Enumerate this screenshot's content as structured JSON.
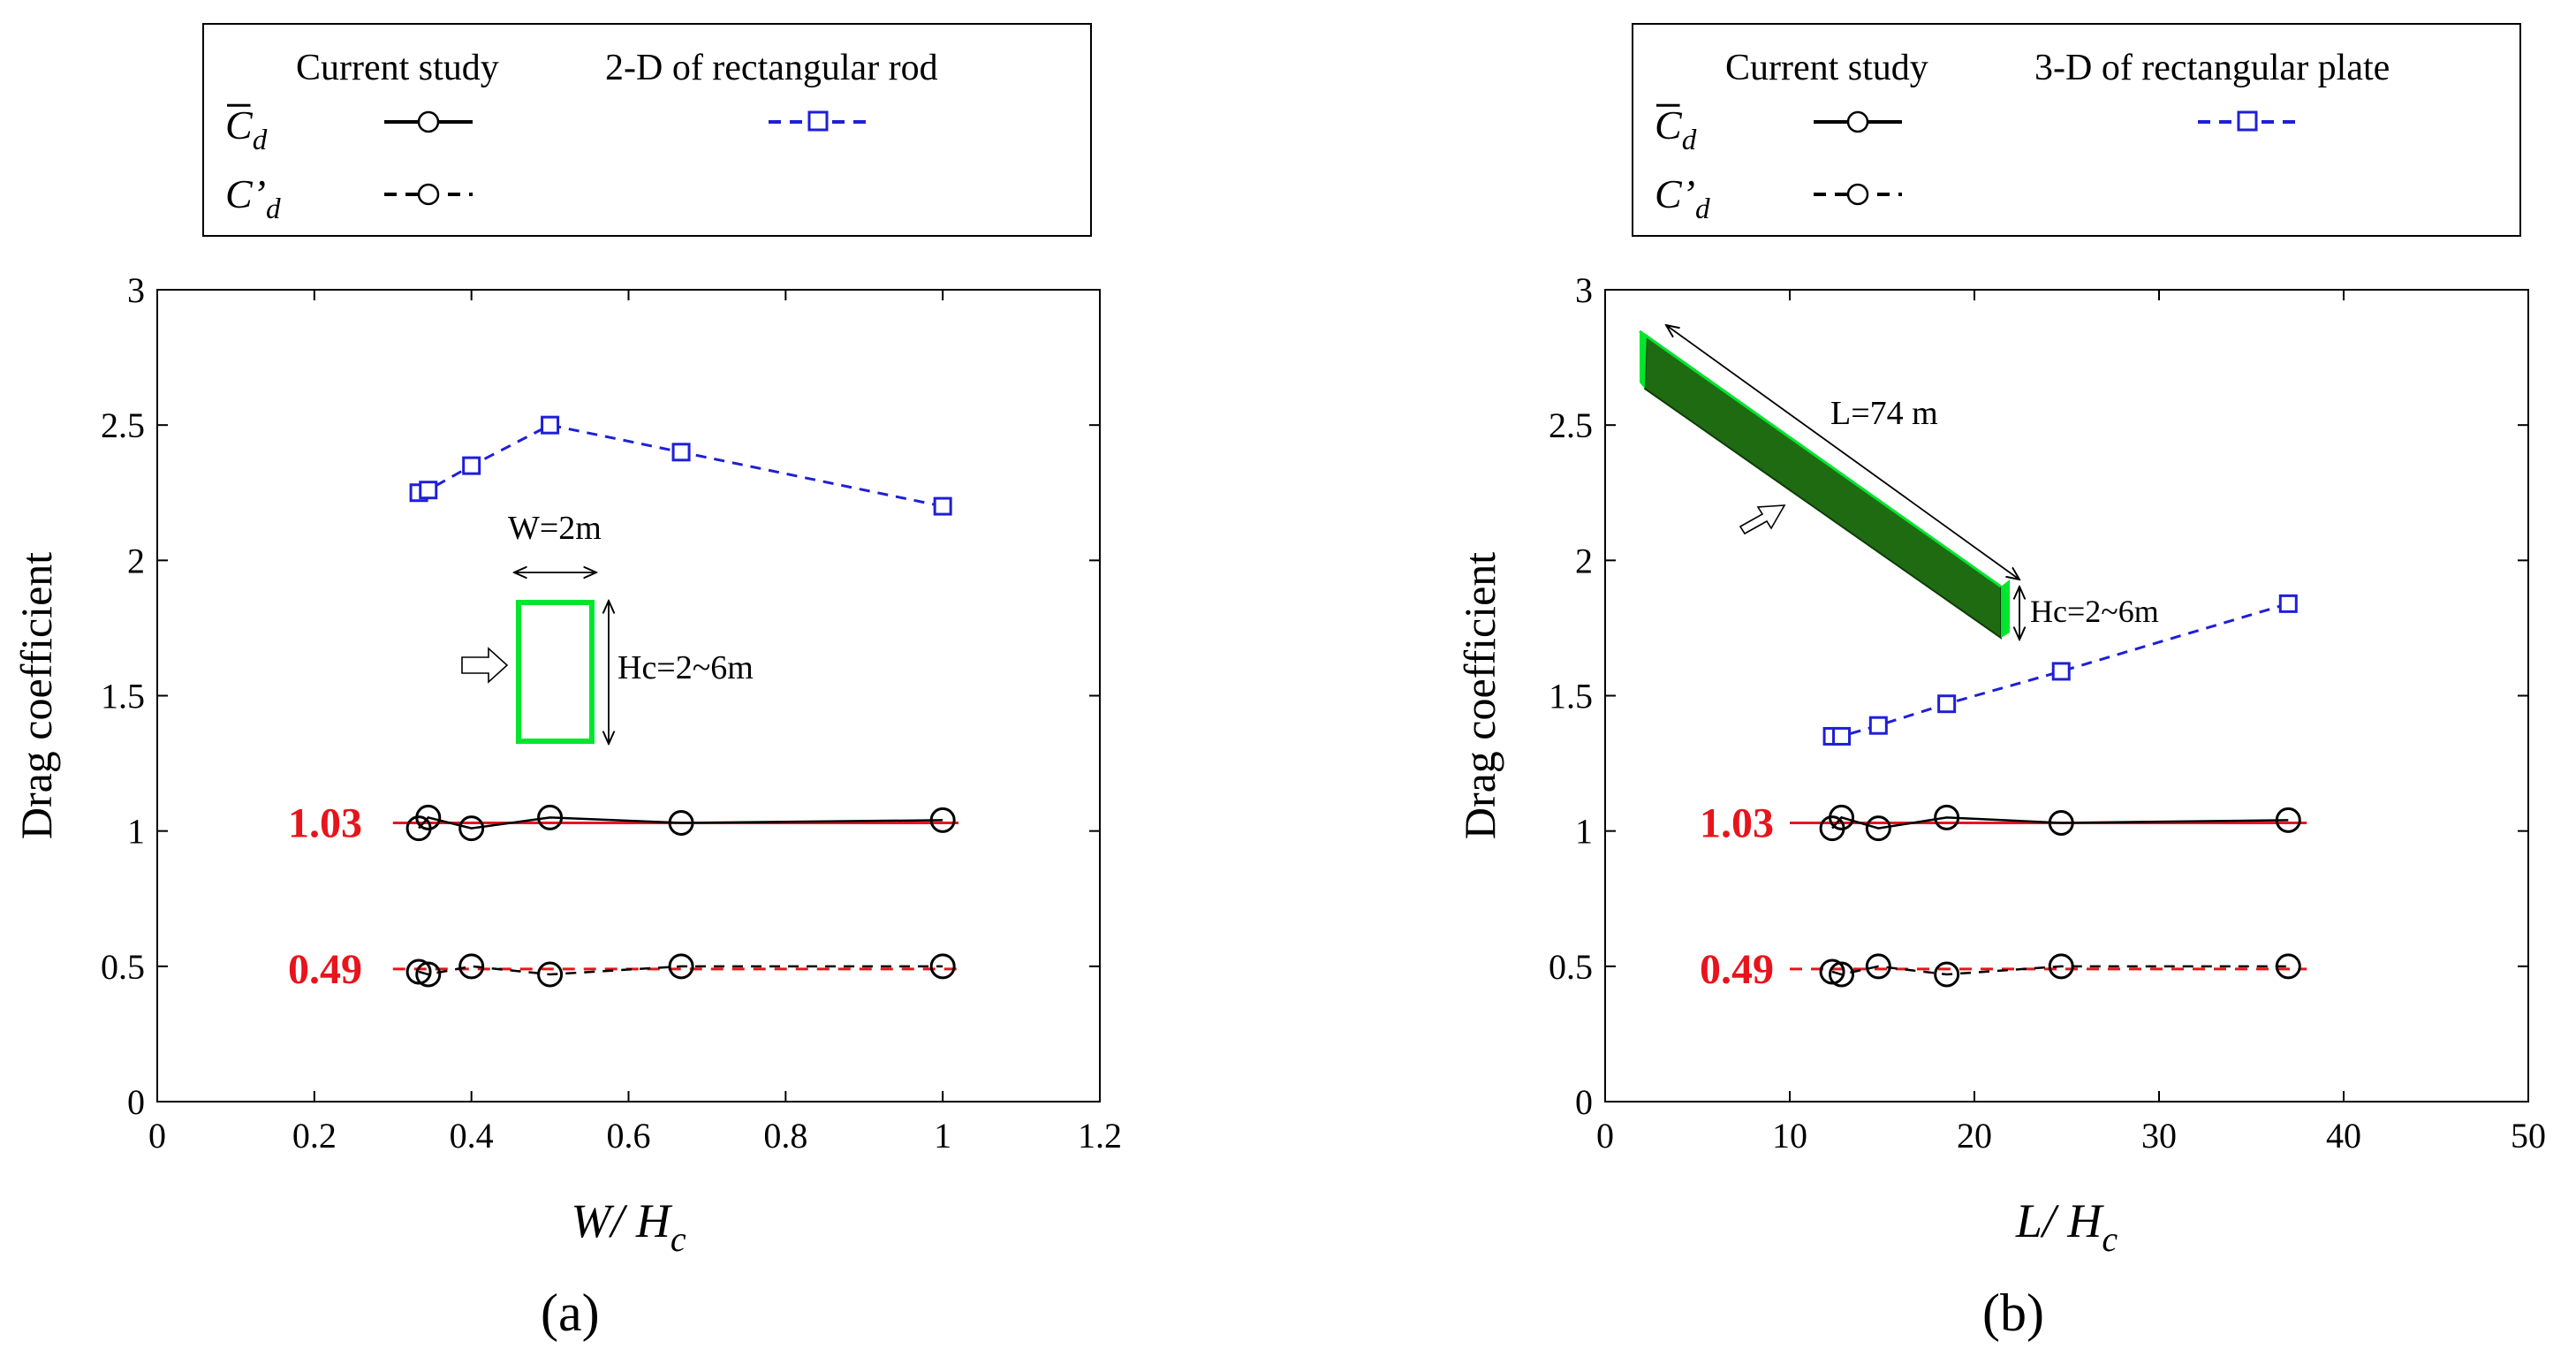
{
  "colors": {
    "current": "#000000",
    "reference": "#1f1fd6",
    "mean_line": "#e8141c",
    "highlight": "#00e62e",
    "plate": "#1f6b12"
  },
  "chart_data": [
    {
      "type": "line",
      "panel_label": "(a)",
      "xlabel": "W/ Hc",
      "ylabel": "Drag coefficient",
      "xlim": [
        0,
        1.2
      ],
      "ylim": [
        0,
        3
      ],
      "xticks": [
        "0",
        "0.2",
        "0.4",
        "0.6",
        "0.8",
        "1",
        "1.2"
      ],
      "yticks": [
        "0",
        "0.5",
        "1",
        "1.5",
        "2",
        "2.5",
        "3"
      ],
      "grid": false,
      "legend": {
        "position": "top",
        "col1_header": "Current study",
        "col2_header": "2-D of rectangular rod",
        "row1_symbol": "C̄d",
        "row2_symbol": "C'd"
      },
      "series": [
        {
          "name": "Current study C̄d",
          "style": "solid",
          "marker": "circle",
          "x": [
            0.333,
            0.345,
            0.4,
            0.5,
            0.667,
            1.0
          ],
          "y": [
            1.01,
            1.05,
            1.01,
            1.05,
            1.03,
            1.04
          ]
        },
        {
          "name": "Current study C'd",
          "style": "dashed",
          "marker": "circle",
          "x": [
            0.333,
            0.345,
            0.4,
            0.5,
            0.667,
            1.0
          ],
          "y": [
            0.48,
            0.47,
            0.5,
            0.47,
            0.5,
            0.5
          ]
        },
        {
          "name": "2-D of rectangular rod",
          "style": "dashed",
          "marker": "square",
          "x": [
            0.333,
            0.345,
            0.4,
            0.5,
            0.667,
            1.0
          ],
          "y": [
            2.25,
            2.26,
            2.35,
            2.5,
            2.4,
            2.2
          ]
        }
      ],
      "mean_lines": [
        {
          "label": "1.03",
          "y": 1.03,
          "style": "solid",
          "x_range": [
            0.3,
            1.02
          ]
        },
        {
          "label": "0.49",
          "y": 0.49,
          "style": "dashed",
          "x_range": [
            0.3,
            1.02
          ]
        }
      ],
      "annotations": {
        "width_label": "W=2m",
        "height_label": "Hc=2~6m"
      }
    },
    {
      "type": "line",
      "panel_label": "(b)",
      "xlabel": "L/ Hc",
      "ylabel": "Drag coefficient",
      "xlim": [
        0,
        50
      ],
      "ylim": [
        0,
        3
      ],
      "xticks": [
        "0",
        "10",
        "20",
        "30",
        "40",
        "50"
      ],
      "yticks": [
        "0",
        "0.5",
        "1",
        "1.5",
        "2",
        "2.5",
        "3"
      ],
      "grid": false,
      "legend": {
        "position": "top",
        "col1_header": "Current study",
        "col2_header": "3-D of rectangular plate",
        "row1_symbol": "C̄d",
        "row2_symbol": "C'd"
      },
      "series": [
        {
          "name": "Current study C̄d",
          "style": "solid",
          "marker": "circle",
          "x": [
            12.3,
            12.8,
            14.8,
            18.5,
            24.7,
            37.0
          ],
          "y": [
            1.01,
            1.05,
            1.01,
            1.05,
            1.03,
            1.04
          ]
        },
        {
          "name": "Current study C'd",
          "style": "dashed",
          "marker": "circle",
          "x": [
            12.3,
            12.8,
            14.8,
            18.5,
            24.7,
            37.0
          ],
          "y": [
            0.48,
            0.47,
            0.5,
            0.47,
            0.5,
            0.5
          ]
        },
        {
          "name": "3-D of rectangular plate",
          "style": "dashed",
          "marker": "square",
          "x": [
            12.3,
            12.8,
            14.8,
            18.5,
            24.7,
            37.0
          ],
          "y": [
            1.35,
            1.35,
            1.39,
            1.47,
            1.59,
            1.84
          ]
        }
      ],
      "mean_lines": [
        {
          "label": "1.03",
          "y": 1.03,
          "style": "solid",
          "x_range": [
            10,
            38
          ]
        },
        {
          "label": "0.49",
          "y": 0.49,
          "style": "dashed",
          "x_range": [
            10,
            38
          ]
        }
      ],
      "annotations": {
        "length_label": "L=74 m",
        "height_label": "Hc=2~6m"
      }
    }
  ]
}
